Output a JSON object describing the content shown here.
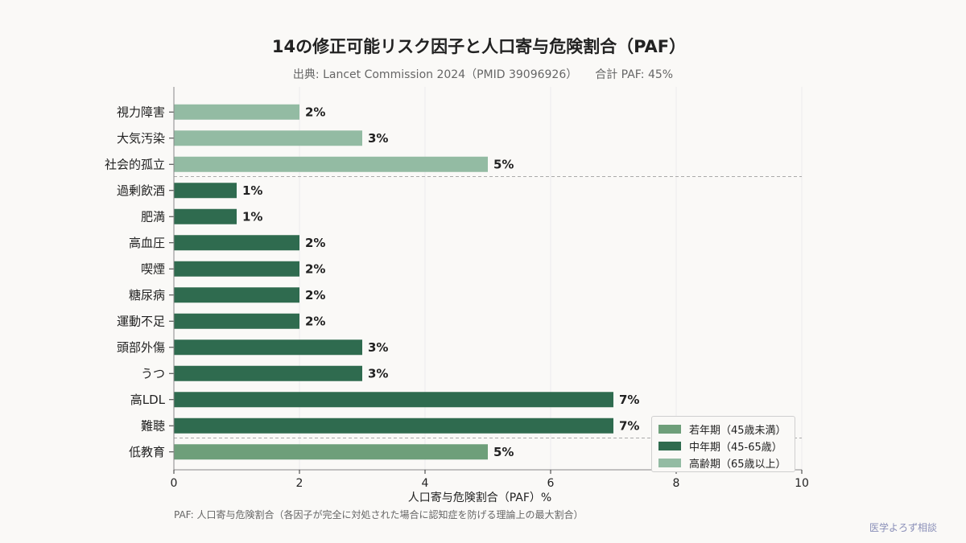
{
  "title": "14の修正可能リスク因子と人口寄与危険割合（PAF）",
  "subtitle": {
    "source": "出典: Lancet Commission 2024（PMID 39096926）",
    "total": "合計 PAF: 45%"
  },
  "footnote": "PAF: 人口寄与危険割合（各因子が完全に対処された場合に認知症を防げる理論上の最大割合）",
  "brand": "医学よろず相談",
  "colors": {
    "young": "#6e9f7a",
    "middle": "#2f6b4f",
    "old": "#93bba3"
  },
  "chart_data": {
    "type": "bar",
    "orientation": "horizontal",
    "xlabel": "人口寄与危険割合（PAF）%",
    "xlim": [
      0,
      10
    ],
    "xticks": [
      0,
      2,
      4,
      6,
      8,
      10
    ],
    "grid": "vertical",
    "legend_position": "bottom-right",
    "categories": [
      "視力障害",
      "大気汚染",
      "社会的孤立",
      "過剰飲酒",
      "肥満",
      "高血圧",
      "喫煙",
      "糖尿病",
      "運動不足",
      "頭部外傷",
      "うつ",
      "高LDL",
      "難聴",
      "低教育"
    ],
    "values": [
      2,
      3,
      5,
      1,
      1,
      2,
      2,
      2,
      2,
      3,
      3,
      7,
      7,
      5
    ],
    "groups": [
      "old",
      "old",
      "old",
      "middle",
      "middle",
      "middle",
      "middle",
      "middle",
      "middle",
      "middle",
      "middle",
      "middle",
      "middle",
      "young"
    ],
    "value_labels": [
      "2%",
      "3%",
      "5%",
      "1%",
      "1%",
      "2%",
      "2%",
      "2%",
      "2%",
      "3%",
      "3%",
      "7%",
      "7%",
      "5%"
    ],
    "legend": [
      {
        "group": "young",
        "label": "若年期（45歳未満）"
      },
      {
        "group": "middle",
        "label": "中年期（45-65歳）"
      },
      {
        "group": "old",
        "label": "高齢期（65歳以上）"
      }
    ]
  }
}
